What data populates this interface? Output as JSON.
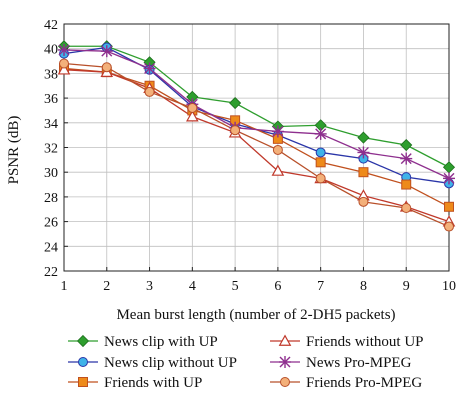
{
  "chart_data": {
    "type": "line",
    "xlabel": "Mean burst length (number of 2-DH5 packets)",
    "ylabel": "PSNR (dB)",
    "xlim": [
      1,
      10
    ],
    "ylim": [
      22,
      42
    ],
    "xticks": [
      1,
      2,
      3,
      4,
      5,
      6,
      7,
      8,
      9,
      10
    ],
    "yticks": [
      22,
      24,
      26,
      28,
      30,
      32,
      34,
      36,
      38,
      40,
      42
    ],
    "grid": true,
    "legend_position": "below",
    "x": [
      1,
      2,
      3,
      4,
      5,
      6,
      7,
      8,
      9,
      10
    ],
    "series": [
      {
        "name": "News clip with UP",
        "color": "#2e9e2e",
        "marker": "diamond",
        "values": [
          40.2,
          40.2,
          38.9,
          36.1,
          35.6,
          33.7,
          33.8,
          32.8,
          32.2,
          30.4
        ]
      },
      {
        "name": "News clip without UP",
        "color": "#2a35a8",
        "marker": "circle",
        "marker_fill": "#3fb3e8",
        "values": [
          39.6,
          40.1,
          38.3,
          35.3,
          33.9,
          33.0,
          31.6,
          31.1,
          29.6,
          29.1
        ]
      },
      {
        "name": "Friends with UP",
        "color": "#c0501e",
        "marker": "square",
        "marker_fill": "#ee8a1a",
        "values": [
          38.4,
          38.1,
          37.0,
          35.0,
          34.2,
          32.7,
          30.8,
          30.0,
          29.0,
          27.2
        ]
      },
      {
        "name": "Friends without UP",
        "color": "#c0392b",
        "marker": "triangle",
        "marker_fill": "none",
        "values": [
          38.3,
          38.1,
          36.8,
          34.5,
          33.2,
          30.1,
          29.5,
          28.1,
          27.2,
          26.0
        ]
      },
      {
        "name": "News Pro-MPEG",
        "color": "#8e2f8e",
        "marker": "star",
        "values": [
          39.9,
          39.8,
          38.4,
          35.5,
          33.6,
          33.3,
          33.1,
          31.6,
          31.1,
          29.5
        ]
      },
      {
        "name": "Friends Pro-MPEG",
        "color": "#b8502a",
        "marker": "circle",
        "marker_fill": "#f3b07a",
        "values": [
          38.8,
          38.5,
          36.5,
          35.2,
          33.4,
          31.8,
          29.5,
          27.6,
          27.1,
          25.6
        ]
      }
    ]
  }
}
